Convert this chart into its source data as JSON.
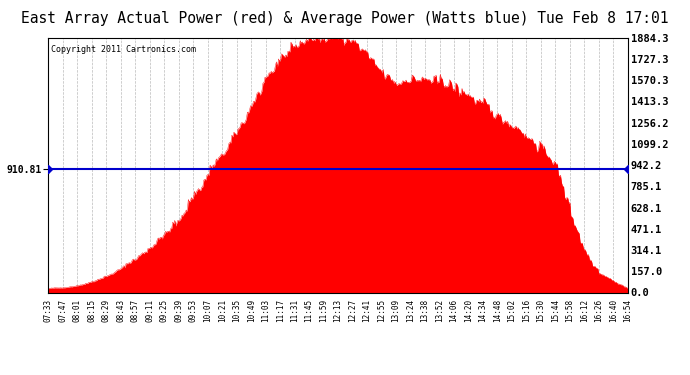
{
  "title": "East Array Actual Power (red) & Average Power (Watts blue) Tue Feb 8 17:01",
  "copyright_text": "Copyright 2011 Cartronics.com",
  "avg_power": 910.81,
  "y_max": 1884.3,
  "y_min": 0.0,
  "y_ticks": [
    0.0,
    157.0,
    314.1,
    471.1,
    628.1,
    785.1,
    942.2,
    1099.2,
    1256.2,
    1413.3,
    1570.3,
    1727.3,
    1884.3
  ],
  "y_tick_labels": [
    "0.0",
    "157.0",
    "314.1",
    "471.1",
    "628.1",
    "785.1",
    "942.2",
    "1099.2",
    "1256.2",
    "1413.3",
    "1570.3",
    "1727.3",
    "1884.3"
  ],
  "x_tick_labels": [
    "07:33",
    "07:47",
    "08:01",
    "08:15",
    "08:29",
    "08:43",
    "08:57",
    "09:11",
    "09:25",
    "09:39",
    "09:53",
    "10:07",
    "10:21",
    "10:35",
    "10:49",
    "11:03",
    "11:17",
    "11:31",
    "11:45",
    "11:59",
    "12:13",
    "12:27",
    "12:41",
    "12:55",
    "13:09",
    "13:24",
    "13:38",
    "13:52",
    "14:06",
    "14:20",
    "14:34",
    "14:48",
    "15:02",
    "15:16",
    "15:30",
    "15:44",
    "15:58",
    "16:12",
    "16:26",
    "16:40",
    "16:54"
  ],
  "fill_color": "#FF0000",
  "line_color": "#0000CC",
  "grid_color": "#AAAAAA",
  "bg_color": "#FFFFFF",
  "title_fontsize": 10.5,
  "curve_points": [
    [
      0,
      30
    ],
    [
      1,
      35
    ],
    [
      2,
      50
    ],
    [
      3,
      80
    ],
    [
      4,
      120
    ],
    [
      5,
      180
    ],
    [
      6,
      250
    ],
    [
      7,
      330
    ],
    [
      8,
      430
    ],
    [
      9,
      550
    ],
    [
      10,
      700
    ],
    [
      11,
      870
    ],
    [
      12,
      1020
    ],
    [
      13,
      1180
    ],
    [
      14,
      1380
    ],
    [
      15,
      1570
    ],
    [
      16,
      1727
    ],
    [
      17,
      1820
    ],
    [
      18,
      1870
    ],
    [
      19,
      1884
    ],
    [
      20,
      1884
    ],
    [
      21,
      1860
    ],
    [
      22,
      1750
    ],
    [
      23,
      1620
    ],
    [
      24,
      1550
    ],
    [
      25,
      1570
    ],
    [
      26,
      1570
    ],
    [
      27,
      1560
    ],
    [
      28,
      1510
    ],
    [
      29,
      1450
    ],
    [
      30,
      1390
    ],
    [
      31,
      1310
    ],
    [
      32,
      1240
    ],
    [
      33,
      1160
    ],
    [
      34,
      1070
    ],
    [
      35,
      940
    ],
    [
      36,
      600
    ],
    [
      37,
      300
    ],
    [
      38,
      150
    ],
    [
      39,
      80
    ],
    [
      40,
      30
    ]
  ]
}
